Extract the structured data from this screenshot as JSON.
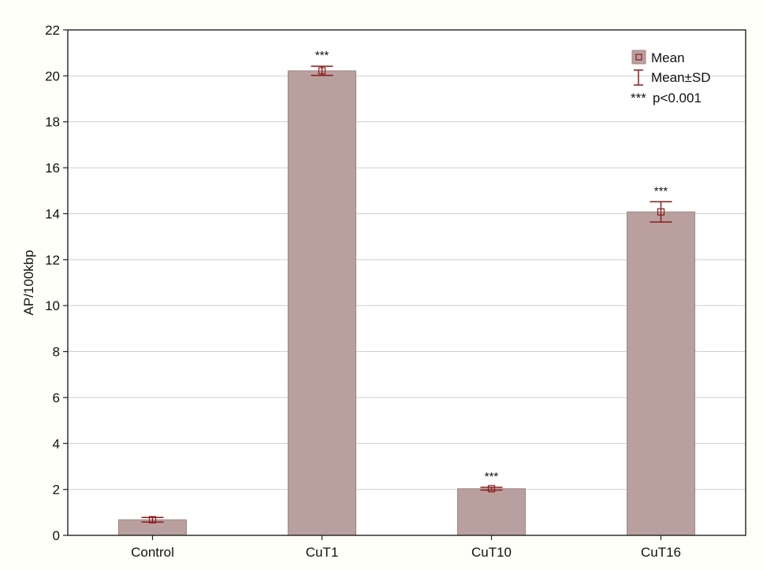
{
  "colors": {
    "bar_fill": "#b9a09f",
    "bar_edge": "#a08685",
    "error_bar": "#8c1a1a",
    "grid": "#cfcfcf",
    "axis": "#222222"
  },
  "legend": {
    "mean_label": "Mean",
    "sd_label": "Mean±SD",
    "sig_marker": "***",
    "sig_text": "p<0.001"
  },
  "chart_data": {
    "type": "bar",
    "title": "",
    "xlabel": "",
    "ylabel": "AP/100kbp",
    "ylim": [
      0,
      22
    ],
    "yticks": [
      0,
      2,
      4,
      6,
      8,
      10,
      12,
      14,
      16,
      18,
      20,
      22
    ],
    "grid": "horizontal",
    "legend_position": "top-right",
    "categories": [
      "Control",
      "CuT1",
      "CuT10",
      "CuT16"
    ],
    "series": [
      {
        "name": "Mean",
        "values": [
          0.68,
          20.22,
          2.03,
          14.08
        ],
        "sd": [
          0.1,
          0.2,
          0.06,
          0.44
        ],
        "significance": [
          "",
          "***",
          "***",
          "***"
        ]
      }
    ]
  }
}
